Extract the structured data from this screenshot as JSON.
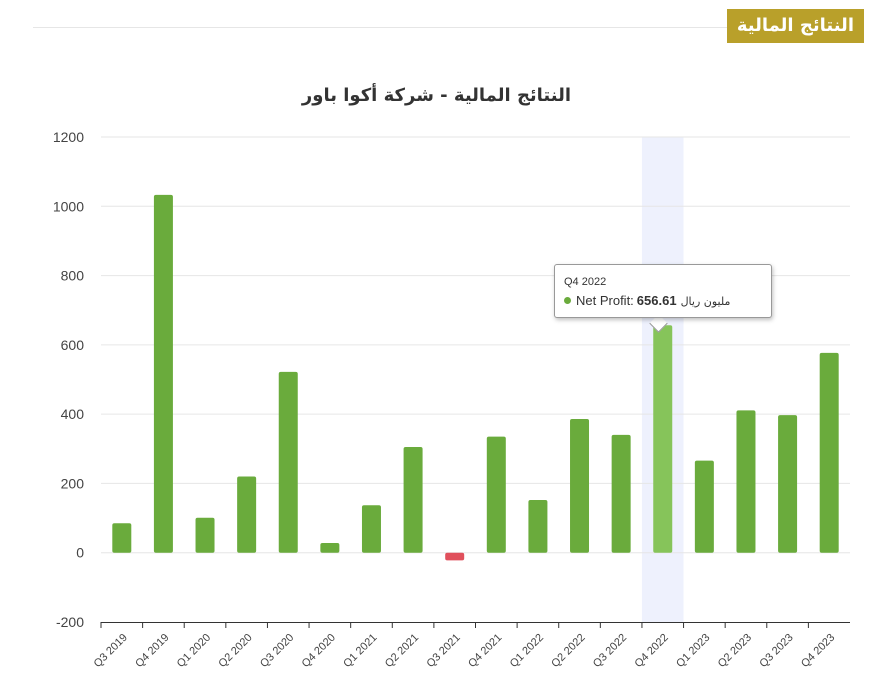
{
  "badge": "النتائج المالية",
  "chart_data": {
    "type": "bar",
    "title": "النتائج المالية - شركة أكوا باور",
    "categories": [
      "Q3 2019",
      "Q4 2019",
      "Q1 2020",
      "Q2 2020",
      "Q3 2020",
      "Q4 2020",
      "Q1 2021",
      "Q2 2021",
      "Q3 2021",
      "Q4 2021",
      "Q1 2022",
      "Q2 2022",
      "Q3 2022",
      "Q4 2022",
      "Q1 2023",
      "Q2 2023",
      "Q3 2023",
      "Q4 2023"
    ],
    "series": [
      {
        "name": "Net Profit",
        "values": [
          85,
          1033,
          101,
          220,
          522,
          28,
          137,
          305,
          -22,
          335,
          152,
          386,
          340,
          656.61,
          266,
          411,
          397,
          577
        ]
      }
    ],
    "ylim": [
      -200,
      1200
    ],
    "yticks": [
      "-200",
      "0",
      "200",
      "400",
      "600",
      "800",
      "1000",
      "1200"
    ],
    "grid": true,
    "colors": {
      "positive": "#6aab3c",
      "negative": "#e0505c",
      "highlight": "#86c45a",
      "hover_band": "#eef1fd"
    },
    "highlighted_index": 13,
    "tooltip": {
      "title": "Q4 2022",
      "series": "Net Profit:",
      "value": "656.61",
      "unit": "مليون ريال"
    }
  }
}
